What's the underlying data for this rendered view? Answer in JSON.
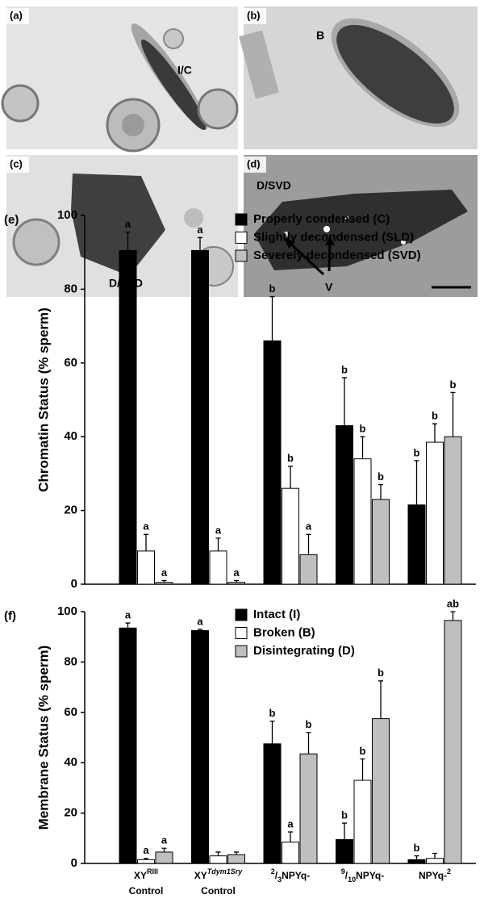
{
  "micrographs": [
    {
      "panel": "(a)",
      "labels": [
        "I/C"
      ]
    },
    {
      "panel": "(b)",
      "labels": [
        "B"
      ]
    },
    {
      "panel": "(c)",
      "labels": [
        "D/SLD"
      ]
    },
    {
      "panel": "(d)",
      "labels": [
        "D/SVD",
        "V"
      ]
    }
  ],
  "chart_data": [
    {
      "type": "bar",
      "label": "(e)",
      "ylabel": "Chromatin Status (% sperm)",
      "categories": [
        null,
        null,
        null,
        null,
        null
      ],
      "ylim": [
        0,
        100
      ],
      "yticks": [
        0,
        20,
        40,
        60,
        80,
        100
      ],
      "grid": false,
      "series": [
        {
          "name": "Properly condensed (C)",
          "color": "#000000",
          "values": [
            90.5,
            90.5,
            66,
            43,
            21.5
          ],
          "errors": [
            5,
            3.5,
            12,
            13,
            12
          ],
          "annotations": [
            "a",
            "a",
            "b",
            "b",
            "b"
          ]
        },
        {
          "name": "Slightly decondensed (SLD)",
          "color": "#ffffff",
          "values": [
            9,
            9,
            26,
            34,
            38.5
          ],
          "errors": [
            4.5,
            3.5,
            6,
            6,
            5
          ],
          "annotations": [
            "a",
            "a",
            "b",
            "b",
            "b"
          ]
        },
        {
          "name": "Severely decondensed (SVD)",
          "color": "#bfbfbf",
          "values": [
            0.5,
            0.5,
            8,
            23,
            40
          ],
          "errors": [
            0.5,
            0.5,
            5.5,
            4,
            12
          ],
          "annotations": [
            "a",
            "a",
            "a",
            "b",
            "b"
          ]
        }
      ]
    },
    {
      "type": "bar",
      "label": "(f)",
      "ylabel": "Membrane Status (% sperm)",
      "categories": [
        [
          [
            {
              "text": "XY"
            },
            {
              "text": "RIII",
              "sup": true
            }
          ],
          [
            {
              "text": "Control"
            }
          ]
        ],
        [
          [
            {
              "text": "XY"
            },
            {
              "text": "Tdym1Sry",
              "sup": true,
              "italic": true
            }
          ],
          [
            {
              "text": "Control"
            }
          ]
        ],
        [
          [
            {
              "text": "2",
              "sup": true
            },
            {
              "text": "/"
            },
            {
              "text": "3",
              "sub": true
            },
            {
              "text": "NPYq-"
            }
          ]
        ],
        [
          [
            {
              "text": "9",
              "sup": true
            },
            {
              "text": "/"
            },
            {
              "text": "10",
              "sub": true
            },
            {
              "text": "NPYq-"
            }
          ]
        ],
        [
          [
            {
              "text": "NPYq-"
            },
            {
              "text": "2",
              "sup": true
            }
          ]
        ]
      ],
      "ylim": [
        0,
        100
      ],
      "yticks": [
        0,
        20,
        40,
        60,
        80,
        100
      ],
      "grid": false,
      "series": [
        {
          "name": "Intact (I)",
          "color": "#000000",
          "values": [
            93.5,
            92.5,
            47.5,
            9.5,
            1.5
          ],
          "errors": [
            2,
            0.5,
            9,
            6.5,
            1.5
          ],
          "annotations": [
            "a",
            "a",
            "b",
            "b",
            "b"
          ]
        },
        {
          "name": "Broken (B)",
          "color": "#ffffff",
          "values": [
            1.5,
            3,
            8.5,
            33,
            2
          ],
          "errors": [
            0.5,
            1.5,
            4,
            8.5,
            2
          ],
          "annotations": [
            "a",
            null,
            "a",
            "b",
            null
          ]
        },
        {
          "name": "Disintegrating (D)",
          "color": "#bfbfbf",
          "values": [
            4.5,
            3.5,
            43.5,
            57.5,
            96.5
          ],
          "errors": [
            1.5,
            1,
            8.5,
            15,
            3.5
          ],
          "annotations": [
            "a",
            null,
            "b",
            "b",
            "ab"
          ]
        }
      ]
    }
  ]
}
